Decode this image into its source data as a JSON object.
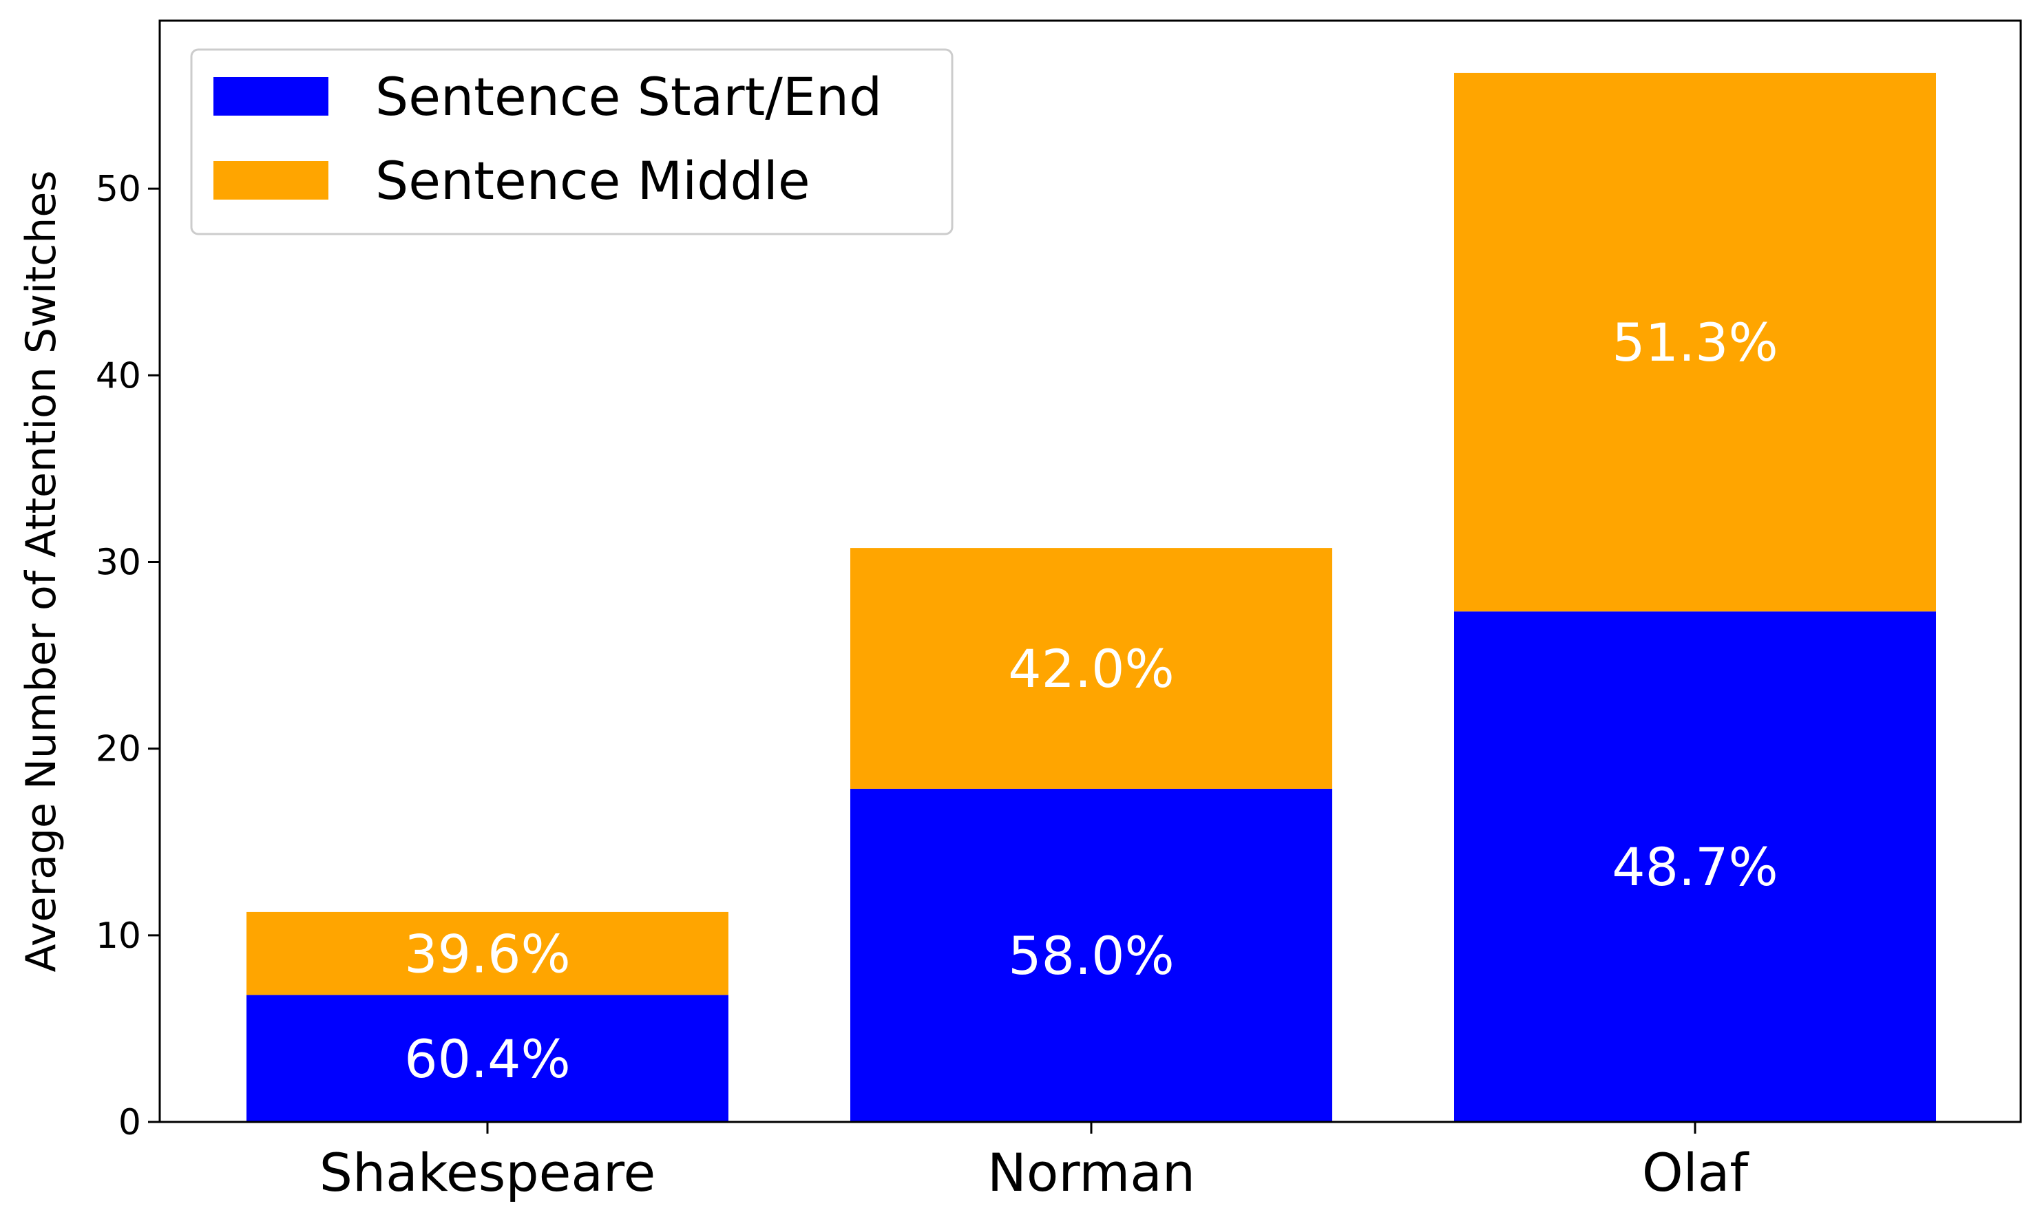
{
  "chart_data": {
    "type": "bar",
    "stacked": true,
    "title": "",
    "xlabel": "",
    "ylabel": "Average Number of Attention Switches",
    "categories": [
      "Shakespeare",
      "Norman",
      "Olaf"
    ],
    "series": [
      {
        "name": "Sentence Start/End",
        "color": "#0000ff",
        "values": [
          6.8,
          17.85,
          27.35
        ],
        "labels": [
          "60.4%",
          "58.0%",
          "48.7%"
        ]
      },
      {
        "name": "Sentence Middle",
        "color": "#ffa500",
        "values": [
          4.45,
          12.9,
          28.85
        ],
        "labels": [
          "39.6%",
          "42.0%",
          "51.3%"
        ]
      }
    ],
    "ylim": [
      0,
      59
    ],
    "yticks": [
      0,
      10,
      20,
      30,
      40,
      50
    ],
    "grid": false,
    "legend_position": "top-left"
  }
}
